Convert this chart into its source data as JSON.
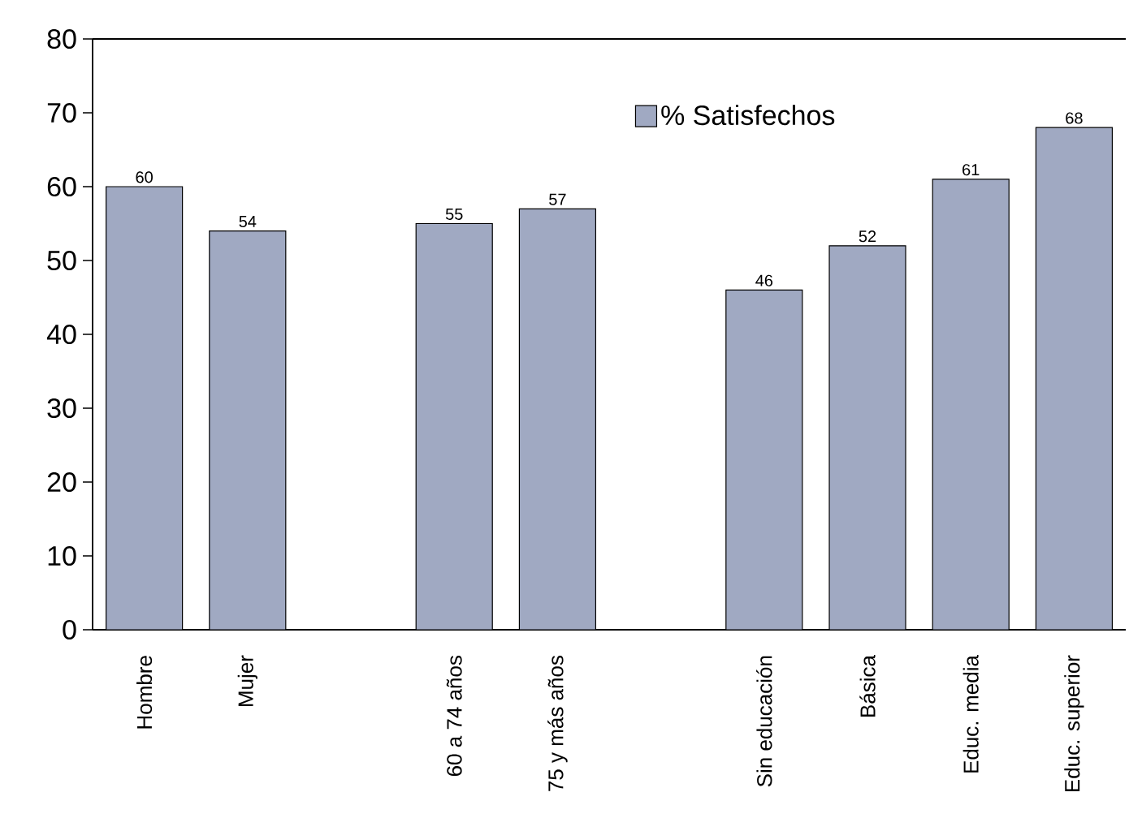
{
  "chart_data": {
    "type": "bar",
    "categories": [
      "Hombre",
      "Mujer",
      null,
      "60 a 74 años",
      "75 y más años",
      null,
      "Sin educación",
      "Básica",
      "Educ. media",
      "Educ. superior"
    ],
    "series": [
      {
        "name": "% Satisfechos",
        "color": "#a0a9c2",
        "values": [
          60,
          54,
          null,
          55,
          57,
          null,
          46,
          52,
          61,
          68
        ]
      }
    ],
    "ylim": [
      0,
      80
    ],
    "yticks": [
      0,
      10,
      20,
      30,
      40,
      50,
      60,
      70,
      80
    ],
    "data_labels": true,
    "legend": "top right",
    "grid": false
  }
}
